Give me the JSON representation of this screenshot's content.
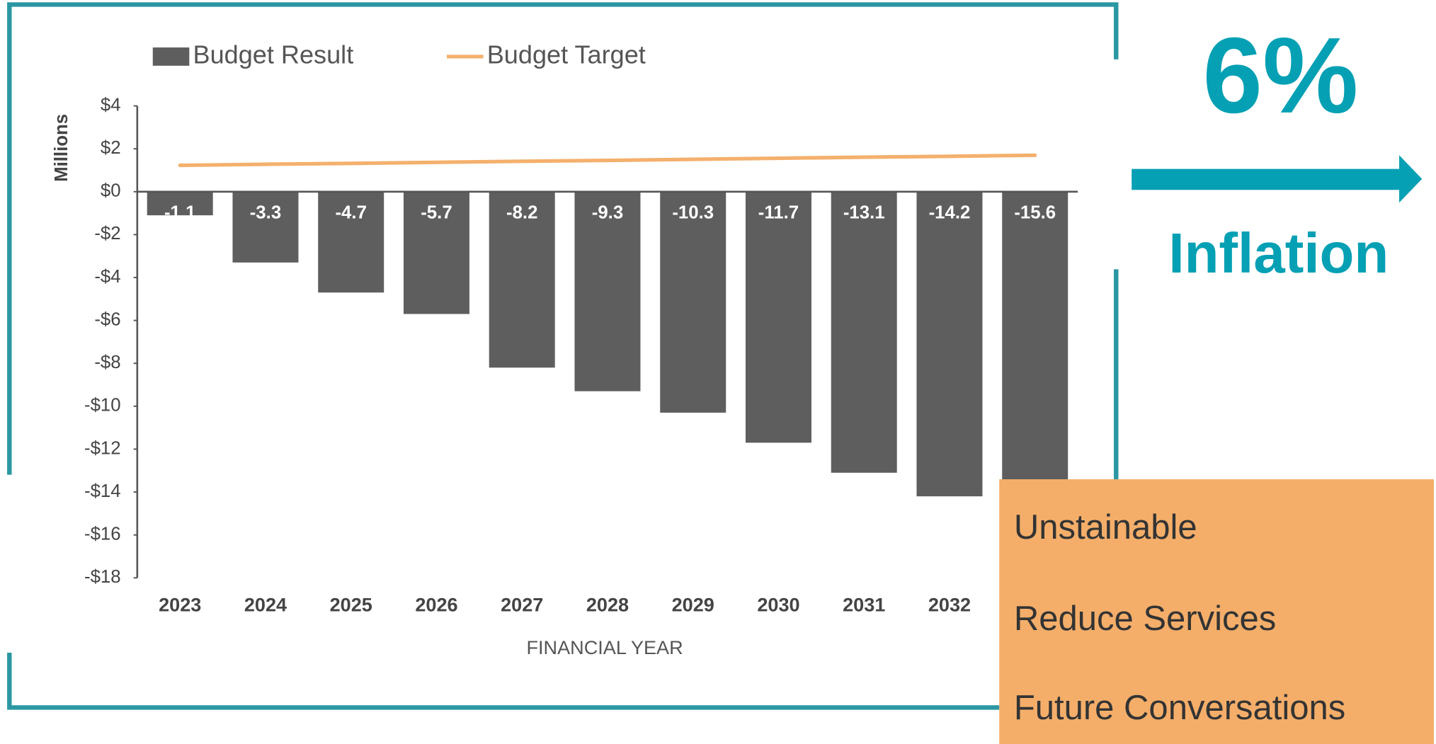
{
  "chart_data": {
    "type": "bar",
    "y_label": "Millions",
    "x_label": "FINANCIAL YEAR",
    "categories": [
      "2023",
      "2024",
      "2025",
      "2026",
      "2027",
      "2028",
      "2029",
      "2030",
      "2031",
      "2032",
      null
    ],
    "series": [
      {
        "name": "Budget Result",
        "type": "bar",
        "color": "#5e5e5e",
        "values": [
          -1.1,
          -3.3,
          -4.7,
          -5.7,
          -8.2,
          -9.3,
          -10.3,
          -11.7,
          -13.1,
          -14.2,
          -15.6
        ]
      },
      {
        "name": "Budget Target",
        "type": "line",
        "color": "#f4b06d",
        "values": [
          1.23,
          1.28,
          1.32,
          1.37,
          1.42,
          1.46,
          1.51,
          1.56,
          1.61,
          1.65,
          1.7
        ]
      }
    ],
    "ylim": [
      -18,
      4
    ],
    "yticks": [
      {
        "value": 4,
        "label": "$4"
      },
      {
        "value": 2,
        "label": "$2"
      },
      {
        "value": 0,
        "label": "$0"
      },
      {
        "value": -2,
        "label": "-$2"
      },
      {
        "value": -4,
        "label": "-$4"
      },
      {
        "value": -6,
        "label": "-$6"
      },
      {
        "value": -8,
        "label": "-$8"
      },
      {
        "value": -10,
        "label": "-$10"
      },
      {
        "value": -12,
        "label": "-$12"
      },
      {
        "value": -14,
        "label": "-$14"
      },
      {
        "value": -16,
        "label": "-$16"
      },
      {
        "value": -18,
        "label": "-$18"
      }
    ],
    "legend": "top"
  },
  "callout": {
    "headline": "6%",
    "caption": "Inflation"
  },
  "notes": [
    "Unstainable",
    "Reduce Services",
    "Future Conversations"
  ]
}
